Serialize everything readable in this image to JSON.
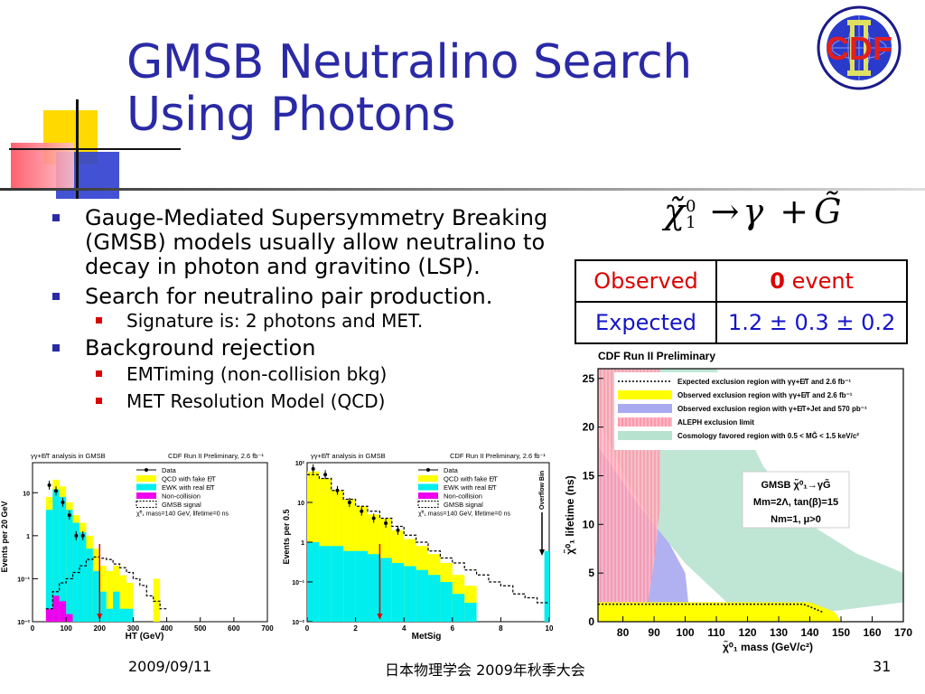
{
  "title": {
    "line1": "GMSB Neutralino Search",
    "line2": "Using Photons"
  },
  "bullets": [
    {
      "text": "Gauge-Mediated Supersymmetry Breaking (GMSB) models usually allow neutralino to decay in photon and gravitino (LSP).",
      "sub": []
    },
    {
      "text": "Search for neutralino pair production.",
      "sub": [
        "Signature is: 2 photons and MET."
      ]
    },
    {
      "text": "Background rejection",
      "sub": [
        "EMTiming (non-collision bkg)",
        "MET Resolution Model (QCD)"
      ]
    }
  ],
  "equation": {
    "lhs": "χ̃",
    "lhs_sup": "0",
    "lhs_sub": "1",
    "arrow": "→",
    "gamma": "γ",
    "plus": "+",
    "rhs": "G̃"
  },
  "counts_table": {
    "observed_label": "Observed",
    "observed_value": "0",
    "observed_unit": "event",
    "expected_label": "Expected",
    "expected_value": "1.2 ± 0.3 ± 0.2"
  },
  "footer": {
    "date": "2009/09/11",
    "event": "日本物理学会 2009年秋季大会",
    "page": "31"
  },
  "logo_text": "CDF",
  "colors": {
    "title": "#2a2aa6",
    "observed": "#dd0000",
    "expected": "#1515c8",
    "qcd_yellow": "#ffff00",
    "ewk_cyan": "#00eeee",
    "noncol_magenta": "#ee00ee"
  },
  "chart_data": [
    {
      "type": "bar",
      "header_left": "γγ+E̸T analysis in GMSB",
      "header_right": "CDF Run II Preliminary, 2.6 fb⁻¹",
      "xlabel": "HT (GeV)",
      "ylabel": "Events per 20 GeV",
      "yscale": "log",
      "ylim": [
        0.01,
        50
      ],
      "xlim": [
        0,
        700
      ],
      "x_ticks": [
        "0",
        "100",
        "200",
        "300",
        "400",
        "500",
        "600",
        "700"
      ],
      "y_ticks": [
        "10⁻²",
        "10⁻¹",
        "1",
        "10"
      ],
      "legend": [
        "Data",
        "QCD with fake E̸T",
        "EWK with real E̸T",
        "Non-collision",
        "GMSB signal"
      ],
      "legend_note": "χ̃⁰₁ mass=140 GeV, lifetime=0 ns",
      "bin_edges": [
        40,
        60,
        80,
        100,
        120,
        140,
        160,
        180,
        200,
        220,
        240,
        260,
        280,
        300,
        320,
        340,
        360,
        380,
        400
      ],
      "ewk": [
        4,
        12,
        8,
        4,
        2,
        1.2,
        0.5,
        0.15,
        0.05,
        0.02,
        0.05,
        0.02,
        0.02,
        0,
        0,
        0,
        0,
        0
      ],
      "qcd_total": [
        8,
        20,
        14,
        6,
        3,
        2,
        1,
        0.5,
        0.2,
        0.15,
        0.2,
        0.12,
        0.08,
        0,
        0,
        0,
        0,
        0
      ],
      "noncollision": [
        0.02,
        0.04,
        0.03,
        0.015,
        0,
        0,
        0,
        0,
        0,
        0,
        0,
        0,
        0,
        0,
        0,
        0,
        0,
        0
      ],
      "yellow_isolated": {
        "x0": 360,
        "x1": 380,
        "value": 0.1
      },
      "signal": [
        0.02,
        0.05,
        0.08,
        0.1,
        0.14,
        0.2,
        0.28,
        0.32,
        0.3,
        0.28,
        0.22,
        0.18,
        0.14,
        0.1,
        0.07,
        0.04,
        0.03,
        0.02
      ],
      "data_x": [
        50,
        70,
        90,
        110,
        130,
        150
      ],
      "data_y": [
        15,
        11,
        6,
        3,
        1,
        1
      ],
      "cut": 200
    },
    {
      "type": "bar",
      "header_left": "γγ+E̸T analysis in GMSB",
      "header_right": "CDF Run II Preliminary, 2.6 fb⁻¹",
      "xlabel": "MetSig",
      "ylabel": "Events per 0.5",
      "yscale": "log",
      "ylim": [
        0.01,
        100
      ],
      "xlim": [
        0,
        10
      ],
      "x_ticks": [
        "0",
        "2",
        "4",
        "6",
        "8",
        "10"
      ],
      "y_ticks": [
        "10⁻²",
        "10⁻¹",
        "1",
        "10",
        "10²"
      ],
      "legend": [
        "Data",
        "QCD with fake E̸T",
        "EWK with real E̸T",
        "Non-collision",
        "GMSB signal"
      ],
      "legend_note": "χ̃⁰₁ mass=140 GeV, lifetime=0 ns",
      "overflow_label": "Overflow Bin",
      "bin_edges": [
        0,
        0.5,
        1,
        1.5,
        2,
        2.5,
        3,
        3.5,
        4,
        4.5,
        5,
        5.5,
        6,
        6.5,
        7,
        7.5,
        8,
        8.5,
        9,
        9.5,
        10
      ],
      "ewk": [
        1,
        0.8,
        0.8,
        0.6,
        0.6,
        0.5,
        0.4,
        0.3,
        0.25,
        0.2,
        0.15,
        0.1,
        0.05,
        0.03,
        0,
        0,
        0,
        0,
        0,
        0
      ],
      "qcd_total": [
        60,
        40,
        20,
        12,
        8,
        5,
        4,
        2,
        1.2,
        0.8,
        0.5,
        0.3,
        0.15,
        0.08,
        0,
        0,
        0,
        0,
        0,
        0
      ],
      "overflow_ewk": 0.6,
      "signal": [
        50,
        40,
        20,
        12,
        8,
        6,
        4,
        2.5,
        1.5,
        1,
        0.6,
        0.4,
        0.3,
        0.2,
        0.15,
        0.1,
        0.08,
        0.05,
        0.04,
        0.03
      ],
      "data_x": [
        0.25,
        0.75,
        1.25,
        1.75,
        2.25,
        2.75,
        3.25,
        3.75
      ],
      "data_y": [
        70,
        50,
        20,
        10,
        6,
        4,
        3,
        2
      ],
      "cut": 3
    },
    {
      "type": "area",
      "header": "CDF Run II Preliminary",
      "xlabel": "χ̃⁰₁ mass (GeV/c²)",
      "ylabel": "χ̃⁰₁ lifetime (ns)",
      "xlim": [
        72,
        170
      ],
      "ylim": [
        0,
        26
      ],
      "x_ticks": [
        80,
        90,
        100,
        110,
        120,
        130,
        140,
        150,
        160,
        170
      ],
      "y_ticks": [
        0,
        5,
        10,
        15,
        20,
        25
      ],
      "legend": [
        "Expected exclusion region with γγ+E̸T and 2.6 fb⁻¹",
        "Observed exclusion region with γγ+E̸T and 2.6 fb⁻¹",
        "Observed exclusion region with γ+E̸T+Jet and 570 pb⁻¹",
        "ALEPH exclusion limit",
        "Cosmology favored region with 0.5 < MG̃ < 1.5 keV/c²"
      ],
      "model_box": [
        "GMSB χ̃⁰₁→γG̃",
        "Mm=2Λ, tan(β)=15",
        "Nm=1, μ>0"
      ],
      "observed_yy": [
        [
          72,
          0
        ],
        [
          72,
          2
        ],
        [
          140,
          2
        ],
        [
          148,
          1
        ],
        [
          150,
          0
        ]
      ],
      "expected_yy": [
        [
          72,
          1.8
        ],
        [
          138,
          1.8
        ],
        [
          144,
          1
        ]
      ],
      "observed_yjet": [
        [
          72,
          0
        ],
        [
          72,
          18
        ],
        [
          85,
          12
        ],
        [
          95,
          8
        ],
        [
          100,
          5
        ],
        [
          101,
          2
        ],
        [
          100,
          0
        ]
      ],
      "aleph": [
        [
          72,
          0
        ],
        [
          72,
          26
        ],
        [
          92,
          26
        ],
        [
          92,
          12
        ],
        [
          90,
          6
        ],
        [
          88,
          2
        ],
        [
          85,
          0
        ]
      ],
      "cosmology_lower": [
        [
          110,
          26
        ],
        [
          125,
          16
        ],
        [
          140,
          10
        ],
        [
          155,
          7
        ],
        [
          170,
          5
        ]
      ],
      "cosmology_upper": [
        [
          72,
          21
        ],
        [
          82,
          14
        ],
        [
          90,
          10
        ],
        [
          100,
          6
        ],
        [
          110,
          3
        ],
        [
          120,
          0
        ]
      ]
    }
  ]
}
